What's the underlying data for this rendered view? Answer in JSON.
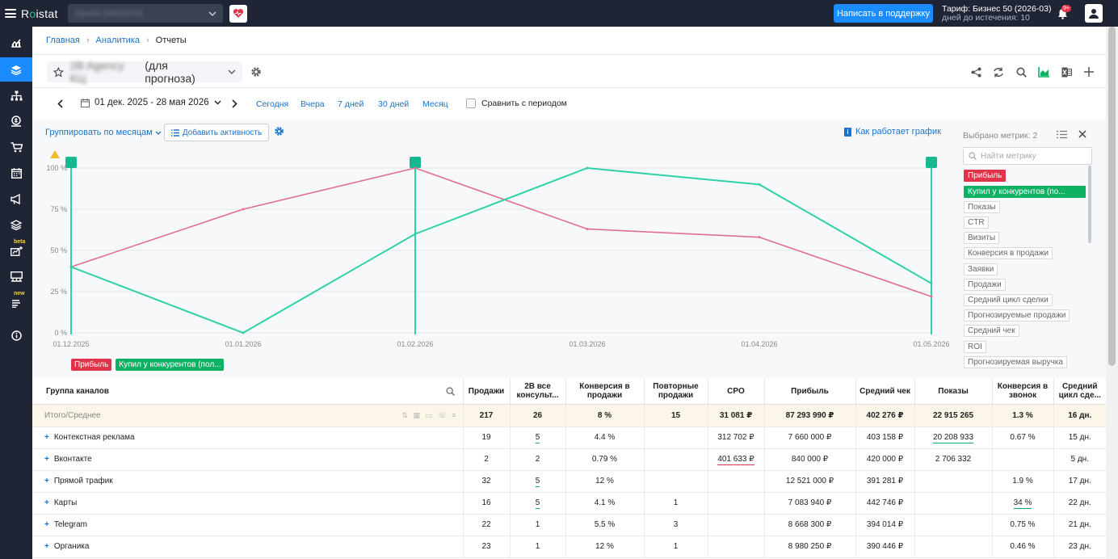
{
  "topbar": {
    "logo_prefix": "R",
    "logo_o": "o",
    "logo_suffix": "istat",
    "project_name": "Ориби (ИМ2023)",
    "support_button": "Написать в поддержку",
    "tariff_line1": "Тариф: Бизнес 50 (2026-03)",
    "tariff_line2": "дней до истечения: 10",
    "notifications_badge": "9+"
  },
  "sidebar": {
    "items": [
      {
        "icon": "chart-icon"
      },
      {
        "icon": "layers-icon",
        "active": true
      },
      {
        "icon": "structure-icon"
      },
      {
        "icon": "money-icon"
      },
      {
        "icon": "cart-icon"
      },
      {
        "icon": "calendar-icon"
      },
      {
        "icon": "megaphone-icon"
      },
      {
        "icon": "stack-icon"
      },
      {
        "icon": "forecast-icon",
        "badge": "beta"
      },
      {
        "icon": "station-icon"
      },
      {
        "icon": "reports-icon",
        "badge": "new"
      },
      {
        "icon": "info-icon"
      }
    ]
  },
  "breadcrumb": {
    "home": "Главная",
    "analytics": "Аналитика",
    "current": "Отчеты"
  },
  "report": {
    "title_blurred": "2B Agency KЦ",
    "title_suffix": "(для прогноза)"
  },
  "period": {
    "range": "01 дек. 2025 - 28 мая 2026",
    "quick": [
      "Сегодня",
      "Вчера",
      "7 дней",
      "30 дней",
      "Месяц"
    ],
    "compare_label": "Сравнить с периодом"
  },
  "chart_controls": {
    "group_by": "Группировать по месяцам",
    "add_activity": "Добавить активность",
    "how_chart": "Как работает график"
  },
  "chart_data": {
    "type": "line",
    "x": [
      "01.12.2025",
      "01.01.2026",
      "01.02.2026",
      "01.03.2026",
      "01.04.2026",
      "01.05.2026"
    ],
    "y_ticks": [
      "0 %",
      "25 %",
      "50 %",
      "75 %",
      "100 %"
    ],
    "ylim": [
      0,
      100
    ],
    "grid": true,
    "series": [
      {
        "name": "Прибыль",
        "color": "#e07090",
        "values": [
          40,
          75,
          100,
          63,
          58,
          22
        ]
      },
      {
        "name": "Купил у конкурентов (пол...",
        "color": "#2ed1a8",
        "values": [
          40,
          0,
          60,
          100,
          90,
          30
        ]
      }
    ],
    "markers": [
      "01.12.2025",
      "01.02.2026",
      "01.05.2026"
    ]
  },
  "metric_panel": {
    "selected_label": "Выбрано метрик: 2",
    "search_placeholder": "Найти метрику",
    "metrics": [
      {
        "label": "Прибыль",
        "state": "red"
      },
      {
        "label": "Купил у конкурентов (по...",
        "state": "green"
      },
      {
        "label": "Показы"
      },
      {
        "label": "CTR"
      },
      {
        "label": "Визиты"
      },
      {
        "label": "Конверсия в продажи"
      },
      {
        "label": "Заявки"
      },
      {
        "label": "Продажи"
      },
      {
        "label": "Средний цикл сделки"
      },
      {
        "label": "Прогнозируемые продажи"
      },
      {
        "label": "Средний чек"
      },
      {
        "label": "ROI"
      },
      {
        "label": "Прогнозируемая выручка"
      }
    ]
  },
  "legend": {
    "red": "Прибыль",
    "green": "Купил у конкурентов (пол..."
  },
  "table": {
    "columns": [
      "Группа каналов",
      "Продажи",
      "2B все консульт...",
      "Конверсия в продажи",
      "Повторные продажи",
      "CPO",
      "Прибыль",
      "Средний чек",
      "Показы",
      "Конверсия в звонок",
      "Средний цикл сде..."
    ],
    "total": [
      "Итого/Среднее",
      "217",
      "26",
      "8 %",
      "15",
      "31 081 ₽",
      "87 293 990 ₽",
      "402 276 ₽",
      "22 915 265",
      "1.3 %",
      "16 дн."
    ],
    "rows": [
      [
        "Контекстная реклама",
        "19",
        "5",
        "4.4 %",
        "",
        "312 702 ₽",
        "7 660 000 ₽",
        "403 158 ₽",
        "20 208 933",
        "0.67 %",
        "15 дн."
      ],
      [
        "Вконтакте",
        "2",
        "2",
        "0.79 %",
        "",
        "401 633 ₽",
        "840 000 ₽",
        "420 000 ₽",
        "2 706 332",
        "",
        "5 дн."
      ],
      [
        "Прямой трафик",
        "32",
        "5",
        "12 %",
        "",
        "",
        "12 521 000 ₽",
        "391 281 ₽",
        "",
        "1.9 %",
        "17 дн."
      ],
      [
        "Карты",
        "16",
        "5",
        "4.1 %",
        "1",
        "",
        "7 083 940 ₽",
        "442 746 ₽",
        "",
        "34 %",
        "22 дн."
      ],
      [
        "Telegram",
        "22",
        "1",
        "5.5 %",
        "3",
        "",
        "8 668 300 ₽",
        "394 014 ₽",
        "",
        "0.75 %",
        "21 дн."
      ],
      [
        "Органика",
        "23",
        "1",
        "12 %",
        "1",
        "",
        "8 980 250 ₽",
        "390 446 ₽",
        "",
        "0.46 %",
        "23 дн."
      ]
    ]
  }
}
